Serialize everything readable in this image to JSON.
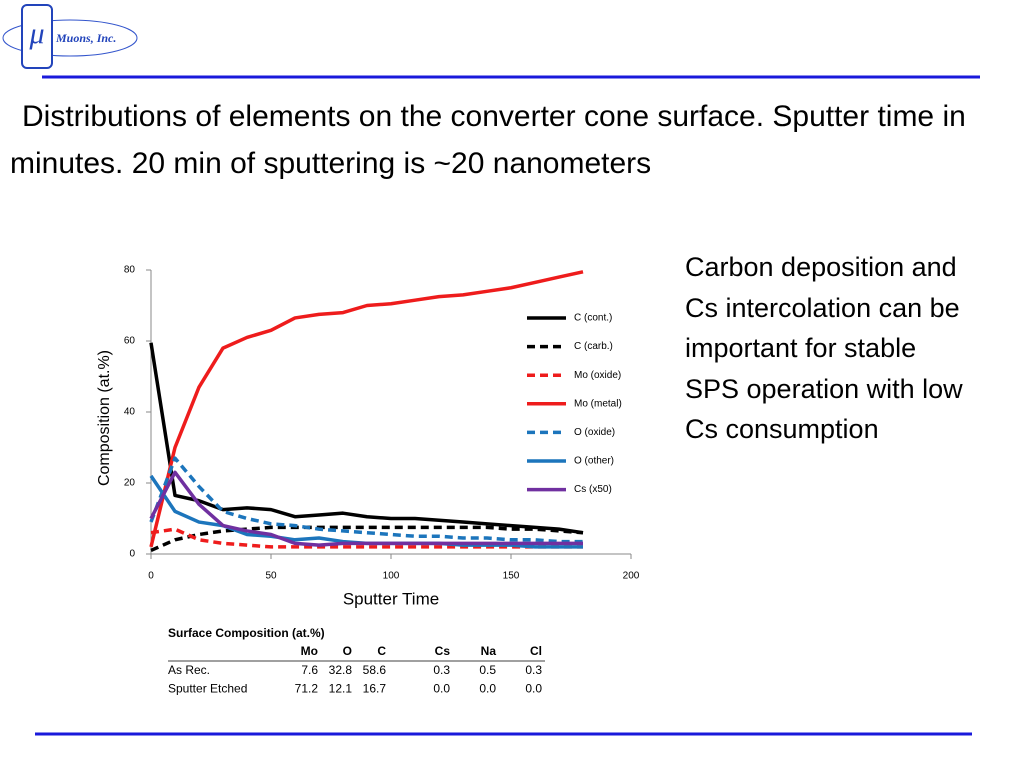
{
  "logo": {
    "symbol": "μ",
    "name": "Muons, Inc."
  },
  "title": "Distributions of elements on the converter cone surface. Sputter time in minutes. 20 min of sputtering is ~20 nanometers",
  "side_text": "Carbon deposition and Cs intercolation can be important for stable SPS operation with low Cs consumption",
  "chart_data": {
    "type": "line",
    "xlabel": "Sputter Time",
    "ylabel": "Composition (at.%)",
    "x": [
      0,
      10,
      20,
      30,
      40,
      50,
      60,
      70,
      80,
      90,
      100,
      110,
      120,
      130,
      140,
      150,
      160,
      170,
      180
    ],
    "xlim": [
      0,
      200
    ],
    "xticks": [
      0,
      50,
      100,
      150,
      200
    ],
    "ylim": [
      0,
      80
    ],
    "yticks": [
      0,
      20,
      40,
      60,
      80
    ],
    "grid": false,
    "legend": "right",
    "series": [
      {
        "name": "C (cont.)",
        "color": "#000000",
        "dash": false,
        "values": [
          59.5,
          16.5,
          15,
          12.5,
          13,
          12.5,
          10.5,
          11,
          11.5,
          10.5,
          10,
          10,
          9.5,
          9,
          8.5,
          8,
          7.5,
          7,
          6
        ]
      },
      {
        "name": "C (carb.)",
        "color": "#000000",
        "dash": true,
        "values": [
          1,
          4,
          5.5,
          6.5,
          7,
          7.5,
          7.5,
          7.5,
          7.5,
          7.5,
          7.5,
          7.5,
          7.5,
          7.5,
          7.5,
          7,
          7,
          6.5,
          6
        ]
      },
      {
        "name": "Mo (oxide)",
        "color": "#ee1c1c",
        "dash": true,
        "values": [
          6,
          7,
          4,
          3,
          2.5,
          2,
          2,
          2,
          2,
          2,
          2,
          2,
          2,
          2,
          2,
          2,
          2,
          2,
          2
        ]
      },
      {
        "name": "Mo (metal)",
        "color": "#ee1c1c",
        "dash": false,
        "values": [
          2,
          30,
          47,
          58,
          61,
          63,
          66.5,
          67.5,
          68,
          70,
          70.5,
          71.5,
          72.5,
          73,
          74,
          75,
          76.5,
          78,
          79.5
        ]
      },
      {
        "name": "O (oxide)",
        "color": "#1c75bc",
        "dash": true,
        "values": [
          9,
          27,
          19,
          12,
          10,
          8.5,
          8,
          7,
          6.5,
          6,
          5.5,
          5,
          5,
          4.5,
          4.5,
          4,
          4,
          3.5,
          3.5
        ]
      },
      {
        "name": "O (other)",
        "color": "#1c75bc",
        "dash": false,
        "values": [
          22,
          12,
          9,
          8,
          5.5,
          5,
          4,
          4.5,
          3.5,
          3,
          3,
          3,
          3,
          2.5,
          2.5,
          2.5,
          2,
          2,
          2
        ]
      },
      {
        "name": "Cs (x50)",
        "color": "#7030a0",
        "dash": false,
        "values": [
          10,
          23,
          14,
          8,
          6.5,
          5.5,
          3,
          2.5,
          3,
          3,
          3,
          3,
          3,
          3,
          3,
          3,
          3,
          3,
          3
        ]
      }
    ]
  },
  "table": {
    "title": "Surface Composition (at.%)",
    "columns": [
      "Mo",
      "O",
      "C",
      "Cs",
      "Na",
      "Cl"
    ],
    "rows": [
      {
        "label": "As Rec.",
        "values": [
          "7.6",
          "32.8",
          "58.6",
          "0.3",
          "0.5",
          "0.3"
        ]
      },
      {
        "label": "Sputter Etched",
        "values": [
          "71.2",
          "12.1",
          "16.7",
          "0.0",
          "0.0",
          "0.0"
        ]
      }
    ]
  }
}
